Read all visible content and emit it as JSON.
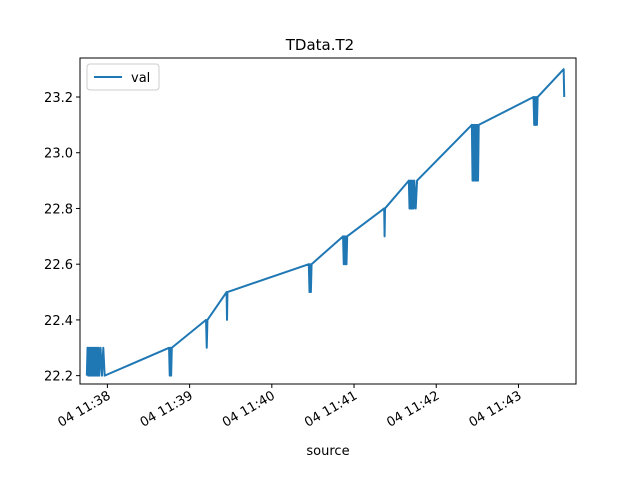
{
  "chart_data": {
    "type": "line",
    "title": "TData.T2",
    "xlabel": "source",
    "ylabel": "",
    "ylim": [
      22.17,
      23.34
    ],
    "xlim": [
      "2023-01-04T11:37:40",
      "2023-01-04T11:43:42"
    ],
    "x_ticks": [
      {
        "t": "2023-01-04T11:38:00",
        "label": "04 11:38"
      },
      {
        "t": "2023-01-04T11:39:00",
        "label": "04 11:39"
      },
      {
        "t": "2023-01-04T11:40:00",
        "label": "04 11:40"
      },
      {
        "t": "2023-01-04T11:41:00",
        "label": "04 11:41"
      },
      {
        "t": "2023-01-04T11:42:00",
        "label": "04 11:42"
      },
      {
        "t": "2023-01-04T11:43:00",
        "label": "04 11:43"
      }
    ],
    "y_ticks": [
      {
        "v": 22.2,
        "label": "22.2"
      },
      {
        "v": 22.4,
        "label": "22.4"
      },
      {
        "v": 22.6,
        "label": "22.6"
      },
      {
        "v": 22.8,
        "label": "22.8"
      },
      {
        "v": 23.0,
        "label": "23.0"
      },
      {
        "v": 23.2,
        "label": "23.2"
      }
    ],
    "grid": false,
    "legend": "top-left",
    "series": [
      {
        "name": "val",
        "color": "#1f77b4",
        "points": [
          [
            "2023-01-04T11:37:45",
            22.2
          ],
          [
            "2023-01-04T11:37:45.5",
            22.3
          ],
          [
            "2023-01-04T11:37:46",
            22.2
          ],
          [
            "2023-01-04T11:37:46.5",
            22.3
          ],
          [
            "2023-01-04T11:37:47",
            22.2
          ],
          [
            "2023-01-04T11:37:47.5",
            22.3
          ],
          [
            "2023-01-04T11:37:48",
            22.2
          ],
          [
            "2023-01-04T11:37:48.5",
            22.3
          ],
          [
            "2023-01-04T11:37:49",
            22.2
          ],
          [
            "2023-01-04T11:37:49.5",
            22.3
          ],
          [
            "2023-01-04T11:37:50",
            22.2
          ],
          [
            "2023-01-04T11:37:50.5",
            22.3
          ],
          [
            "2023-01-04T11:37:51",
            22.2
          ],
          [
            "2023-01-04T11:37:51.5",
            22.3
          ],
          [
            "2023-01-04T11:37:52",
            22.2
          ],
          [
            "2023-01-04T11:37:52.5",
            22.3
          ],
          [
            "2023-01-04T11:37:53",
            22.2
          ],
          [
            "2023-01-04T11:37:53.5",
            22.3
          ],
          [
            "2023-01-04T11:37:54",
            22.2
          ],
          [
            "2023-01-04T11:37:55",
            22.3
          ],
          [
            "2023-01-04T11:37:56",
            22.2
          ],
          [
            "2023-01-04T11:37:57",
            22.3
          ],
          [
            "2023-01-04T11:37:58",
            22.2
          ],
          [
            "2023-01-04T11:38:45",
            22.3
          ],
          [
            "2023-01-04T11:38:45.5",
            22.2
          ],
          [
            "2023-01-04T11:38:46",
            22.3
          ],
          [
            "2023-01-04T11:38:46.5",
            22.2
          ],
          [
            "2023-01-04T11:38:47",
            22.3
          ],
          [
            "2023-01-04T11:39:12",
            22.4
          ],
          [
            "2023-01-04T11:39:12.5",
            22.3
          ],
          [
            "2023-01-04T11:39:13",
            22.4
          ],
          [
            "2023-01-04T11:39:27",
            22.5
          ],
          [
            "2023-01-04T11:39:27.3",
            22.4
          ],
          [
            "2023-01-04T11:39:27.6",
            22.5
          ],
          [
            "2023-01-04T11:40:27",
            22.6
          ],
          [
            "2023-01-04T11:40:27.5",
            22.5
          ],
          [
            "2023-01-04T11:40:28",
            22.6
          ],
          [
            "2023-01-04T11:40:28.5",
            22.5
          ],
          [
            "2023-01-04T11:40:29",
            22.6
          ],
          [
            "2023-01-04T11:40:52",
            22.7
          ],
          [
            "2023-01-04T11:40:52.5",
            22.6
          ],
          [
            "2023-01-04T11:40:53",
            22.7
          ],
          [
            "2023-01-04T11:40:53.5",
            22.6
          ],
          [
            "2023-01-04T11:40:54",
            22.7
          ],
          [
            "2023-01-04T11:40:54.5",
            22.6
          ],
          [
            "2023-01-04T11:40:55",
            22.7
          ],
          [
            "2023-01-04T11:41:22",
            22.8
          ],
          [
            "2023-01-04T11:41:22.3",
            22.7
          ],
          [
            "2023-01-04T11:41:22.6",
            22.8
          ],
          [
            "2023-01-04T11:41:40",
            22.9
          ],
          [
            "2023-01-04T11:41:40.5",
            22.8
          ],
          [
            "2023-01-04T11:41:41",
            22.9
          ],
          [
            "2023-01-04T11:41:41.5",
            22.8
          ],
          [
            "2023-01-04T11:41:42",
            22.9
          ],
          [
            "2023-01-04T11:41:42.5",
            22.8
          ],
          [
            "2023-01-04T11:41:43",
            22.9
          ],
          [
            "2023-01-04T11:41:43.5",
            22.8
          ],
          [
            "2023-01-04T11:41:44",
            22.9
          ],
          [
            "2023-01-04T11:41:45",
            22.8
          ],
          [
            "2023-01-04T11:41:46",
            22.9
          ],
          [
            "2023-01-04T11:42:26",
            23.1
          ],
          [
            "2023-01-04T11:42:26.5",
            22.9
          ],
          [
            "2023-01-04T11:42:27",
            23.1
          ],
          [
            "2023-01-04T11:42:27.5",
            22.9
          ],
          [
            "2023-01-04T11:42:28",
            23.1
          ],
          [
            "2023-01-04T11:42:28.5",
            22.9
          ],
          [
            "2023-01-04T11:42:29",
            23.1
          ],
          [
            "2023-01-04T11:42:29.5",
            22.9
          ],
          [
            "2023-01-04T11:42:30",
            23.1
          ],
          [
            "2023-01-04T11:42:30.5",
            22.9
          ],
          [
            "2023-01-04T11:42:31",
            23.1
          ],
          [
            "2023-01-04T11:43:11",
            23.2
          ],
          [
            "2023-01-04T11:43:11.5",
            23.1
          ],
          [
            "2023-01-04T11:43:12",
            23.2
          ],
          [
            "2023-01-04T11:43:12.5",
            23.1
          ],
          [
            "2023-01-04T11:43:13",
            23.2
          ],
          [
            "2023-01-04T11:43:13.5",
            23.1
          ],
          [
            "2023-01-04T11:43:14",
            23.2
          ],
          [
            "2023-01-04T11:43:33",
            23.3
          ],
          [
            "2023-01-04T11:43:33.4",
            23.2
          ]
        ]
      }
    ]
  }
}
